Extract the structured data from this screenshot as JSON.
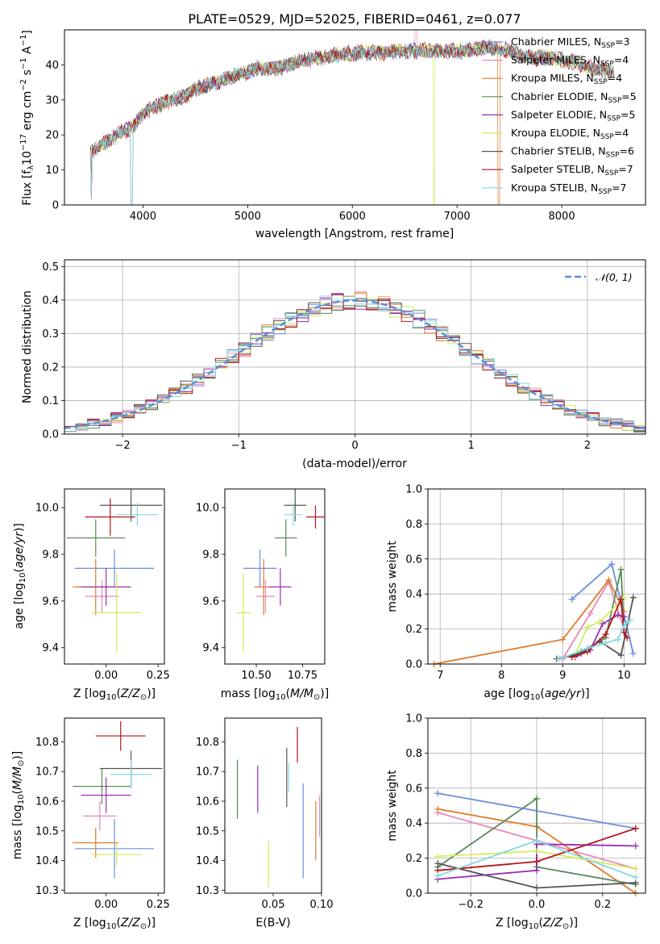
{
  "figure_title": "PLATE=0529, MJD=52025, FIBERID=0461, z=0.077",
  "colors": {
    "chabrier_miles": "#6a8fdc",
    "salpeter_miles": "#e68ab8",
    "kroupa_miles": "#e07b2a",
    "chabrier_elodie": "#5b8a5b",
    "salpeter_elodie": "#9a2fb0",
    "kroupa_elodie": "#d2ec5e",
    "chabrier_stelib": "#555555",
    "salpeter_stelib": "#b3161c",
    "kroupa_stelib": "#86d8e0",
    "gauss": "#5b8fd6"
  },
  "chart_data": [
    {
      "id": "spectrum",
      "type": "line",
      "title": "PLATE=0529, MJD=52025, FIBERID=0461, z=0.077",
      "xlabel": "wavelength [Angstrom, rest frame]",
      "ylabel": "Flux [f_λ 10^-17 erg cm^-2 s^-1 A^-1]",
      "xlim": [
        3250,
        8800
      ],
      "ylim": [
        0,
        50
      ],
      "xticks": [
        4000,
        5000,
        6000,
        7000,
        8000
      ],
      "yticks": [
        0,
        10,
        20,
        30,
        40
      ],
      "legend_position": "top-right",
      "legend": [
        "Chabrier MILES, N_SSP=3",
        "Salpeter MILES, N_SSP=4",
        "Kroupa MILES, N_SSP=4",
        "Chabrier ELODIE, N_SSP=5",
        "Salpeter ELODIE, N_SSP=5",
        "Kroupa ELODIE, N_SSP=4",
        "Chabrier STELIB, N_SSP=6",
        "Salpeter STELIB, N_SSP=7",
        "Kroupa STELIB, N_SSP=7"
      ],
      "continuum": {
        "x": [
          3500,
          3600,
          3700,
          3800,
          3900,
          4000,
          4100,
          4200,
          4300,
          4400,
          4500,
          4700,
          4900,
          5100,
          5300,
          5500,
          5700,
          5900,
          6100,
          6300,
          6500,
          6700,
          6900,
          7100,
          7300,
          7500,
          7700,
          7900,
          8100,
          8300,
          8500
        ],
        "y": [
          15,
          17,
          19,
          21,
          22,
          26,
          28,
          29,
          30,
          31,
          33,
          35,
          37,
          39,
          39,
          41,
          42,
          43,
          43.5,
          43.5,
          44,
          44,
          44,
          44,
          45,
          44,
          42,
          42,
          41,
          39,
          38
        ]
      }
    },
    {
      "id": "residuals",
      "type": "line",
      "xlabel": "(data-model)/error",
      "ylabel": "Normed distribution",
      "xlim": [
        -2.5,
        2.5
      ],
      "ylim": [
        0,
        0.52
      ],
      "xticks": [
        -2,
        -1,
        0,
        1,
        2
      ],
      "yticks": [
        0.0,
        0.1,
        0.2,
        0.3,
        0.4,
        0.5
      ],
      "legend": [
        "𝒩(0, 1)"
      ],
      "legend_position": "top-right",
      "grid": true
    },
    {
      "id": "age_vs_Z",
      "type": "scatter",
      "xlabel": "Z [log10(Z/Z⊙)]",
      "ylabel": "age  [log10(age/yr)]",
      "xlim": [
        -0.2,
        0.28
      ],
      "ylim": [
        9.33,
        10.08
      ],
      "xticks": [
        "0.00",
        "0.25"
      ],
      "xtick_values": [
        0.0,
        0.25
      ],
      "yticks": [
        "9.4",
        "9.6",
        "9.8",
        "10.0"
      ],
      "ytick_values": [
        9.4,
        9.6,
        9.8,
        10.0
      ],
      "points": [
        {
          "series": "chabrier_miles",
          "x": 0.04,
          "xerr": 0.19,
          "y": 9.74,
          "yerr": 0.08
        },
        {
          "series": "salpeter_miles",
          "x": -0.02,
          "xerr": 0.08,
          "y": 9.62,
          "yerr": 0.07
        },
        {
          "series": "kroupa_miles",
          "x": -0.05,
          "xerr": 0.11,
          "y": 9.66,
          "yerr": 0.12
        },
        {
          "series": "chabrier_elodie",
          "x": -0.05,
          "xerr": 0.14,
          "y": 9.87,
          "yerr": 0.08
        },
        {
          "series": "salpeter_elodie",
          "x": 0.0,
          "xerr": 0.12,
          "y": 9.66,
          "yerr": 0.08
        },
        {
          "series": "kroupa_elodie",
          "x": 0.05,
          "xerr": 0.12,
          "y": 9.55,
          "yerr": 0.17
        },
        {
          "series": "chabrier_stelib",
          "x": 0.12,
          "xerr": 0.15,
          "y": 10.01,
          "yerr": 0.07
        },
        {
          "series": "salpeter_stelib",
          "x": 0.02,
          "xerr": 0.12,
          "y": 9.96,
          "yerr": 0.08
        },
        {
          "series": "kroupa_stelib",
          "x": 0.15,
          "xerr": 0.1,
          "y": 9.97,
          "yerr": 0.05
        }
      ]
    },
    {
      "id": "age_vs_mass",
      "type": "scatter",
      "xlabel": "mass [log10(M/M⊙)]",
      "ylabel": "",
      "xlim": [
        10.33,
        10.87
      ],
      "ylim": [
        9.33,
        10.08
      ],
      "xticks": [
        "10.50",
        "10.75"
      ],
      "xtick_values": [
        10.5,
        10.75
      ],
      "yticks": [
        "9.4",
        "9.6",
        "9.8",
        "10.0"
      ],
      "ytick_values": [
        9.4,
        9.6,
        9.8,
        10.0
      ],
      "points": [
        {
          "series": "chabrier_miles",
          "x": 10.52,
          "xerr": 0.09,
          "y": 9.74,
          "yerr": 0.08
        },
        {
          "series": "salpeter_miles",
          "x": 10.55,
          "xerr": 0.05,
          "y": 9.62,
          "yerr": 0.07
        },
        {
          "series": "kroupa_miles",
          "x": 10.54,
          "xerr": 0.05,
          "y": 9.66,
          "yerr": 0.12
        },
        {
          "series": "chabrier_elodie",
          "x": 10.66,
          "xerr": 0.06,
          "y": 9.87,
          "yerr": 0.08
        },
        {
          "series": "salpeter_elodie",
          "x": 10.63,
          "xerr": 0.06,
          "y": 9.66,
          "yerr": 0.08
        },
        {
          "series": "kroupa_elodie",
          "x": 10.43,
          "xerr": 0.04,
          "y": 9.55,
          "yerr": 0.17
        },
        {
          "series": "chabrier_stelib",
          "x": 10.71,
          "xerr": 0.06,
          "y": 10.01,
          "yerr": 0.07
        },
        {
          "series": "salpeter_stelib",
          "x": 10.82,
          "xerr": 0.05,
          "y": 9.96,
          "yerr": 0.05
        },
        {
          "series": "kroupa_stelib",
          "x": 10.7,
          "xerr": 0.05,
          "y": 9.97,
          "yerr": 0.05
        }
      ]
    },
    {
      "id": "weight_vs_age",
      "type": "line",
      "xlabel": "age  [log10(age/yr)]",
      "ylabel": "mass weight",
      "xlim": [
        6.8,
        10.35
      ],
      "ylim": [
        0,
        1.0
      ],
      "xticks": [
        7,
        8,
        9,
        10
      ],
      "yticks": [
        0.0,
        0.2,
        0.4,
        0.6,
        0.8,
        1.0
      ],
      "grid": true,
      "series": [
        {
          "key": "chabrier_miles",
          "x": [
            9.15,
            9.8,
            10.15
          ],
          "y": [
            0.37,
            0.57,
            0.06
          ]
        },
        {
          "key": "salpeter_miles",
          "x": [
            9.0,
            9.45,
            9.75,
            10.0
          ],
          "y": [
            0.03,
            0.29,
            0.47,
            0.2
          ]
        },
        {
          "key": "kroupa_miles",
          "x": [
            6.9,
            9.0,
            9.75,
            10.0
          ],
          "y": [
            0.0,
            0.14,
            0.48,
            0.3
          ]
        },
        {
          "key": "chabrier_elodie",
          "x": [
            8.95,
            9.3,
            9.7,
            9.95,
            10.0
          ],
          "y": [
            0.03,
            0.07,
            0.15,
            0.54,
            0.2
          ]
        },
        {
          "key": "salpeter_elodie",
          "x": [
            9.2,
            9.45,
            9.65,
            9.9,
            10.0
          ],
          "y": [
            0.04,
            0.08,
            0.23,
            0.28,
            0.27
          ]
        },
        {
          "key": "kroupa_elodie",
          "x": [
            9.2,
            9.4,
            9.6,
            10.0
          ],
          "y": [
            0.05,
            0.21,
            0.24,
            0.38
          ]
        },
        {
          "key": "chabrier_stelib",
          "x": [
            8.9,
            9.3,
            9.6,
            9.95,
            10.15
          ],
          "y": [
            0.03,
            0.06,
            0.13,
            0.05,
            0.38
          ]
        },
        {
          "key": "salpeter_stelib",
          "x": [
            9.15,
            9.4,
            9.7,
            9.95,
            10.0,
            10.05
          ],
          "y": [
            0.04,
            0.07,
            0.17,
            0.37,
            0.18,
            0.15
          ]
        },
        {
          "key": "kroupa_stelib",
          "x": [
            8.95,
            9.4,
            9.7,
            9.9,
            10.0,
            10.1
          ],
          "y": [
            0.03,
            0.09,
            0.12,
            0.14,
            0.22,
            0.25
          ]
        }
      ]
    },
    {
      "id": "mass_vs_Z",
      "type": "scatter",
      "xlabel": "Z [log10(Z/Z⊙)]",
      "ylabel": "mass [log10(M/M⊙)]",
      "xlim": [
        -0.2,
        0.28
      ],
      "ylim": [
        10.29,
        10.88
      ],
      "xticks": [
        "0.00",
        "0.25"
      ],
      "xtick_values": [
        0.0,
        0.25
      ],
      "yticks": [
        "10.3",
        "10.4",
        "10.5",
        "10.6",
        "10.7",
        "10.8"
      ],
      "ytick_values": [
        10.3,
        10.4,
        10.5,
        10.6,
        10.7,
        10.8
      ],
      "points": [
        {
          "series": "chabrier_miles",
          "x": 0.04,
          "xerr": 0.19,
          "y": 10.44,
          "yerr": 0.1
        },
        {
          "series": "salpeter_miles",
          "x": -0.03,
          "xerr": 0.08,
          "y": 10.55,
          "yerr": 0.05
        },
        {
          "series": "kroupa_miles",
          "x": -0.05,
          "xerr": 0.11,
          "y": 10.46,
          "yerr": 0.05
        },
        {
          "series": "chabrier_elodie",
          "x": -0.02,
          "xerr": 0.14,
          "y": 10.65,
          "yerr": 0.06
        },
        {
          "series": "salpeter_elodie",
          "x": 0.0,
          "xerr": 0.12,
          "y": 10.62,
          "yerr": 0.06
        },
        {
          "series": "kroupa_elodie",
          "x": 0.05,
          "xerr": 0.12,
          "y": 10.42,
          "yerr": 0.04
        },
        {
          "series": "chabrier_stelib",
          "x": 0.12,
          "xerr": 0.15,
          "y": 10.71,
          "yerr": 0.06
        },
        {
          "series": "salpeter_stelib",
          "x": 0.07,
          "xerr": 0.12,
          "y": 10.82,
          "yerr": 0.05
        },
        {
          "series": "kroupa_stelib",
          "x": 0.12,
          "xerr": 0.1,
          "y": 10.69,
          "yerr": 0.05
        }
      ]
    },
    {
      "id": "mass_vs_ebv",
      "type": "scatter",
      "xlabel": "E(B-V)",
      "ylabel": "",
      "xlim": [
        0.0,
        0.1
      ],
      "ylim": [
        10.29,
        10.88
      ],
      "xticks": [
        "0.05",
        "0.10"
      ],
      "xtick_values": [
        0.05,
        0.1
      ],
      "yticks": [
        "10.3",
        "10.4",
        "10.5",
        "10.6",
        "10.7",
        "10.8"
      ],
      "ytick_values": [
        10.3,
        10.4,
        10.5,
        10.6,
        10.7,
        10.8
      ],
      "points": [
        {
          "series": "chabrier_miles",
          "x": 0.081,
          "xerr": 0.0,
          "y": 10.5,
          "yerr": 0.16
        },
        {
          "series": "salpeter_miles",
          "x": 0.098,
          "xerr": 0.0,
          "y": 10.55,
          "yerr": 0.07
        },
        {
          "series": "kroupa_miles",
          "x": 0.094,
          "xerr": 0.0,
          "y": 10.5,
          "yerr": 0.1
        },
        {
          "series": "chabrier_elodie",
          "x": 0.013,
          "xerr": 0.0,
          "y": 10.64,
          "yerr": 0.1
        },
        {
          "series": "salpeter_elodie",
          "x": 0.034,
          "xerr": 0.0,
          "y": 10.64,
          "yerr": 0.08
        },
        {
          "series": "kroupa_elodie",
          "x": 0.045,
          "xerr": 0.0,
          "y": 10.39,
          "yerr": 0.08
        },
        {
          "series": "chabrier_stelib",
          "x": 0.064,
          "xerr": 0.0,
          "y": 10.68,
          "yerr": 0.1
        },
        {
          "series": "salpeter_stelib",
          "x": 0.075,
          "xerr": 0.0,
          "y": 10.79,
          "yerr": 0.06
        },
        {
          "series": "kroupa_stelib",
          "x": 0.066,
          "xerr": 0.0,
          "y": 10.68,
          "yerr": 0.05
        }
      ]
    },
    {
      "id": "weight_vs_Z",
      "type": "line",
      "xlabel": "Z [log10(Z/Z⊙)]",
      "ylabel": "mass weight",
      "xlim": [
        -0.33,
        0.33
      ],
      "ylim": [
        0,
        1.0
      ],
      "xticks": [
        -0.2,
        0.0,
        0.2
      ],
      "yticks": [
        0.0,
        0.2,
        0.4,
        0.6,
        0.8,
        1.0
      ],
      "grid": true,
      "series": [
        {
          "key": "chabrier_miles",
          "x": [
            -0.3,
            0.3
          ],
          "y": [
            0.57,
            0.37
          ]
        },
        {
          "key": "salpeter_miles",
          "x": [
            -0.3,
            0.0,
            0.3
          ],
          "y": [
            0.46,
            0.3,
            0.14
          ]
        },
        {
          "key": "kroupa_miles",
          "x": [
            -0.3,
            0.0,
            0.3
          ],
          "y": [
            0.48,
            0.38,
            0.0
          ]
        },
        {
          "key": "chabrier_elodie",
          "x": [
            -0.3,
            0.0,
            0.0,
            0.3
          ],
          "y": [
            0.15,
            0.54,
            0.15,
            0.05
          ]
        },
        {
          "key": "salpeter_elodie",
          "x": [
            -0.3,
            0.0,
            0.0,
            0.3
          ],
          "y": [
            0.08,
            0.13,
            0.28,
            0.27
          ]
        },
        {
          "key": "kroupa_elodie",
          "x": [
            -0.3,
            0.0,
            0.3
          ],
          "y": [
            0.21,
            0.24,
            0.14
          ]
        },
        {
          "key": "chabrier_stelib",
          "x": [
            -0.3,
            0.0,
            0.3
          ],
          "y": [
            0.17,
            0.03,
            0.06
          ]
        },
        {
          "key": "salpeter_stelib",
          "x": [
            -0.3,
            0.0,
            0.3
          ],
          "y": [
            0.13,
            0.18,
            0.37
          ]
        },
        {
          "key": "kroupa_stelib",
          "x": [
            -0.3,
            0.0,
            0.3
          ],
          "y": [
            0.1,
            0.3,
            0.09
          ]
        }
      ]
    }
  ]
}
